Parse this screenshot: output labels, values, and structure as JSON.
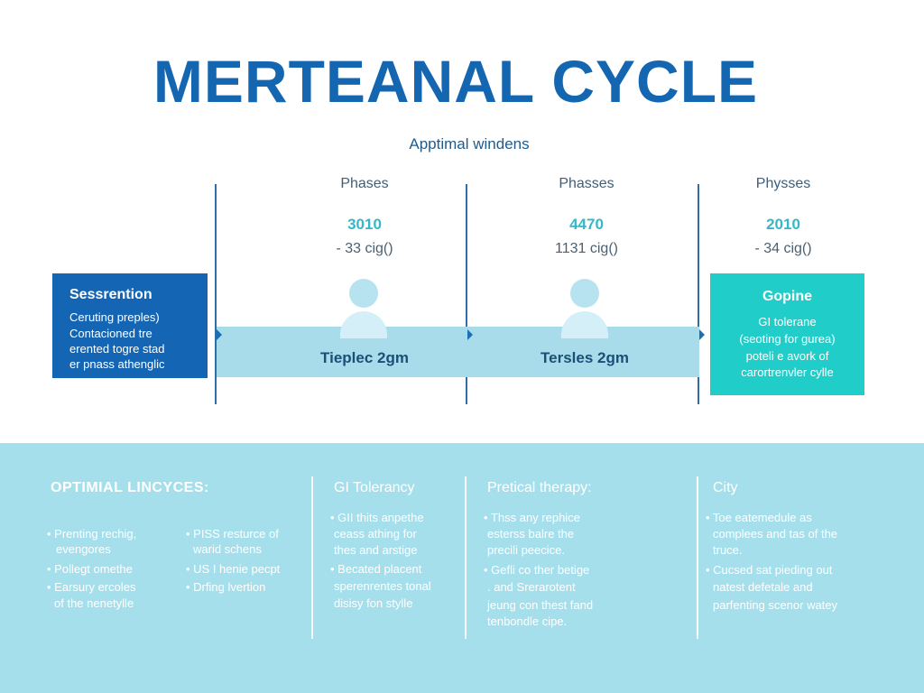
{
  "title": "MERTEANAL CYCLE",
  "subtitle": "Apptimal windens",
  "phases": [
    {
      "label": "Phases",
      "value": "3010",
      "sub": "- 33 cig()"
    },
    {
      "label": "Phasses",
      "value": "4470",
      "sub": "1131 cig()"
    },
    {
      "label": "Physses",
      "value": "2010",
      "sub": "- 34 cig()"
    }
  ],
  "band": {
    "left_text": "Tieplec 2gm",
    "right_text": "Tersles 2gm"
  },
  "left_box": {
    "title": "Sessrention",
    "lines": [
      "Ceruting preples)",
      "Contacioned tre",
      "erented togre stad",
      "er pnass athenglic"
    ]
  },
  "right_box": {
    "title": "Gopine",
    "lines": [
      "GI tolerane",
      "(seoting for gurea)",
      "poteli e avork of",
      "carortrenvler cylle"
    ]
  },
  "bottom": {
    "heading": "OPTIMIAL LINCYCES:",
    "col1": [
      "• Prenting rechig,",
      "evengores",
      "• Pollegt omethe",
      "• Earsury ercoles",
      "of the nenetylle"
    ],
    "col2": [
      "• PISS resturce of",
      "warid schens",
      "• US I henie pecpt",
      "• Drfing lvertion"
    ],
    "sec2": {
      "heading": "GI Tolerancy",
      "items": [
        "• GII thits anpethe",
        "ceass athing for",
        "thes and arstige",
        "• Becated placent",
        "sperenrentes tonal",
        "disisy fon stylle"
      ]
    },
    "sec3": {
      "heading": "Pretical therapy:",
      "items": [
        "• Thss any rephice",
        "esterss balre the",
        "precili peecice.",
        "• Gefli co ther betige",
        ". and Srerarotent",
        "jeung con thest fand",
        "tenbondle cipe."
      ]
    },
    "sec4": {
      "heading": "City",
      "items": [
        "• Toe eatemedule as",
        "complees and tas of the",
        "truce.",
        "• Cucsed sat pieding out",
        "natest defetale and",
        "parfenting scenor watey"
      ]
    }
  },
  "colors": {
    "title": "#1466b0",
    "left_box": "#1565b5",
    "right_box": "#20cdc9",
    "band": "#a9dcea",
    "bottom": "#a6dfec"
  }
}
